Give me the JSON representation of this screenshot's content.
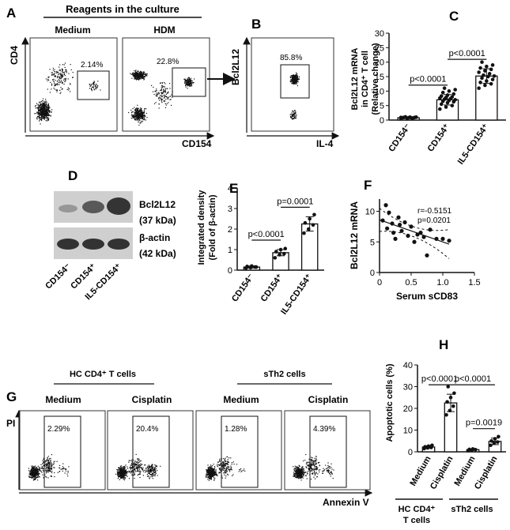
{
  "panels": {
    "A": {
      "letter": "A",
      "header": "Reagents in the culture",
      "col_labels": [
        "Medium",
        "HDM"
      ],
      "y_label": "CD4",
      "x_label": "CD154",
      "gate_values": [
        "2.14%",
        "22.8%"
      ]
    },
    "B": {
      "letter": "B",
      "y_label": "Bcl2L12",
      "x_label": "IL-4",
      "gate_value": "85.8%"
    },
    "C": {
      "letter": "C",
      "ylabel_lines": [
        "Bcl2L12 mRNA",
        "in CD4⁺ T cell",
        "(Relative change)"
      ]
    },
    "D": {
      "letter": "D",
      "band_labels": [
        "Bcl2L12",
        "(37 kDa)",
        "β-actin",
        "(42 kDa)"
      ],
      "lane_labels": [
        "CD154⁻",
        "CD154⁺",
        "IL5-CD154⁺"
      ]
    },
    "E": {
      "letter": "E",
      "ylabel_lines": [
        "Integrated density",
        "(Fold of β-actin)"
      ]
    },
    "F": {
      "letter": "F",
      "stats_lines": [
        "r=-0.5151",
        "p=0.0201"
      ]
    },
    "G": {
      "letter": "G",
      "group_labels": [
        "HC CD4⁺ T cells",
        "sTh2 cells"
      ],
      "col_labels": [
        "Medium",
        "Cisplatin",
        "Medium",
        "Cisplatin"
      ],
      "gate_values": [
        "2.29%",
        "20.4%",
        "1.28%",
        "4.39%"
      ],
      "y_label": "PI",
      "x_label": "Annexin V"
    },
    "H": {
      "letter": "H",
      "group_labels": [
        "HC CD4⁺",
        "T cells",
        "sTh2 cells"
      ]
    }
  },
  "chart_data": [
    {
      "panel": "C",
      "type": "bar",
      "categories": [
        "CD154⁻",
        "CD154⁺",
        "IL5-CD154⁺"
      ],
      "values": [
        0.8,
        7.0,
        15.2
      ],
      "errors": [
        0.2,
        1.8,
        2.5
      ],
      "points": [
        [
          0.5,
          0.6,
          0.7,
          0.8,
          0.8,
          0.9,
          0.9,
          1.0,
          1.0,
          1.1,
          0.7,
          0.9
        ],
        [
          3.8,
          4.5,
          5.0,
          5.5,
          6.0,
          6.3,
          6.5,
          6.8,
          7.0,
          7.2,
          7.4,
          7.6,
          7.8,
          8.0,
          8.3,
          8.6,
          9.0,
          9.5,
          10.0,
          10.5,
          11.0
        ],
        [
          11.0,
          12.0,
          12.5,
          13.0,
          13.5,
          14.0,
          14.5,
          15.0,
          15.2,
          15.5,
          16.0,
          16.5,
          17.0,
          17.5,
          18.0,
          18.5,
          19.0,
          20.0
        ]
      ],
      "ylim": [
        0,
        30
      ],
      "yticks": [
        "0",
        "5",
        "10",
        "15",
        "20",
        "25",
        "30"
      ],
      "annotations": [
        {
          "text": "p<0.0001",
          "from": 0,
          "to": 1
        },
        {
          "text": "p<0.0001",
          "from": 1,
          "to": 2
        }
      ]
    },
    {
      "panel": "E",
      "type": "bar",
      "categories": [
        "CD154⁻",
        "CD154⁺",
        "IL5-CD154⁺"
      ],
      "values": [
        0.15,
        0.85,
        2.25
      ],
      "errors": [
        0.05,
        0.15,
        0.35
      ],
      "points": [
        [
          0.1,
          0.12,
          0.15,
          0.18,
          0.2,
          0.15
        ],
        [
          0.6,
          0.75,
          0.8,
          0.9,
          1.0,
          1.05
        ],
        [
          1.8,
          2.0,
          2.2,
          2.3,
          2.5,
          2.7
        ]
      ],
      "ylim": [
        0,
        4
      ],
      "yticks": [
        "0",
        "1",
        "2",
        "3",
        "4"
      ],
      "annotations": [
        {
          "text": "p<0.0001",
          "from": 0,
          "to": 1
        },
        {
          "text": "p=0.0001",
          "from": 1,
          "to": 2
        }
      ]
    },
    {
      "panel": "F",
      "type": "scatter",
      "xlabel": "Serum sCD83",
      "ylabel": "Bcl2L12 mRNA",
      "xlim": [
        0,
        1.5
      ],
      "ylim": [
        0,
        12
      ],
      "xticks": [
        "0",
        "0.5",
        "1.0",
        "1.5"
      ],
      "yticks": [
        "0",
        "5",
        "10"
      ],
      "points": [
        [
          0.05,
          8.5
        ],
        [
          0.1,
          11.0
        ],
        [
          0.12,
          7.2
        ],
        [
          0.15,
          9.8
        ],
        [
          0.2,
          8.0
        ],
        [
          0.22,
          6.5
        ],
        [
          0.25,
          5.5
        ],
        [
          0.3,
          9.0
        ],
        [
          0.32,
          7.8
        ],
        [
          0.35,
          6.8
        ],
        [
          0.4,
          8.2
        ],
        [
          0.45,
          6.0
        ],
        [
          0.5,
          7.5
        ],
        [
          0.55,
          5.0
        ],
        [
          0.6,
          6.2
        ],
        [
          0.65,
          6.5
        ],
        [
          0.7,
          5.8
        ],
        [
          0.75,
          2.8
        ],
        [
          0.8,
          7.0
        ],
        [
          0.9,
          5.5
        ],
        [
          1.0,
          5.5
        ],
        [
          1.1,
          5.2
        ]
      ],
      "fit": {
        "slope": -3.6,
        "intercept": 8.6,
        "x_range": [
          0.0,
          1.1
        ]
      }
    },
    {
      "panel": "H",
      "type": "bar",
      "ylabel": "Apoptotic cells (%)",
      "categories": [
        "Medium",
        "Cisplatin",
        "Medium",
        "Cisplatin"
      ],
      "values": [
        2.2,
        22.5,
        1.0,
        4.8
      ],
      "errors": [
        0.6,
        4.0,
        0.3,
        1.5
      ],
      "points": [
        [
          1.5,
          1.8,
          2.0,
          2.3,
          2.6,
          3.0
        ],
        [
          17,
          19,
          21,
          23,
          25,
          27,
          30
        ],
        [
          0.6,
          0.8,
          1.0,
          1.1,
          1.3
        ],
        [
          3,
          4,
          4.5,
          5,
          6,
          7
        ]
      ],
      "ylim": [
        0,
        40
      ],
      "yticks": [
        "0",
        "10",
        "20",
        "30",
        "40"
      ],
      "annotations": [
        {
          "text": "p<0.0001",
          "from": 0,
          "to": 1
        },
        {
          "text": "p<0.0001",
          "from": 1,
          "to": 3
        },
        {
          "text": "p=0.0019",
          "from": 2,
          "to": 3
        }
      ]
    }
  ]
}
